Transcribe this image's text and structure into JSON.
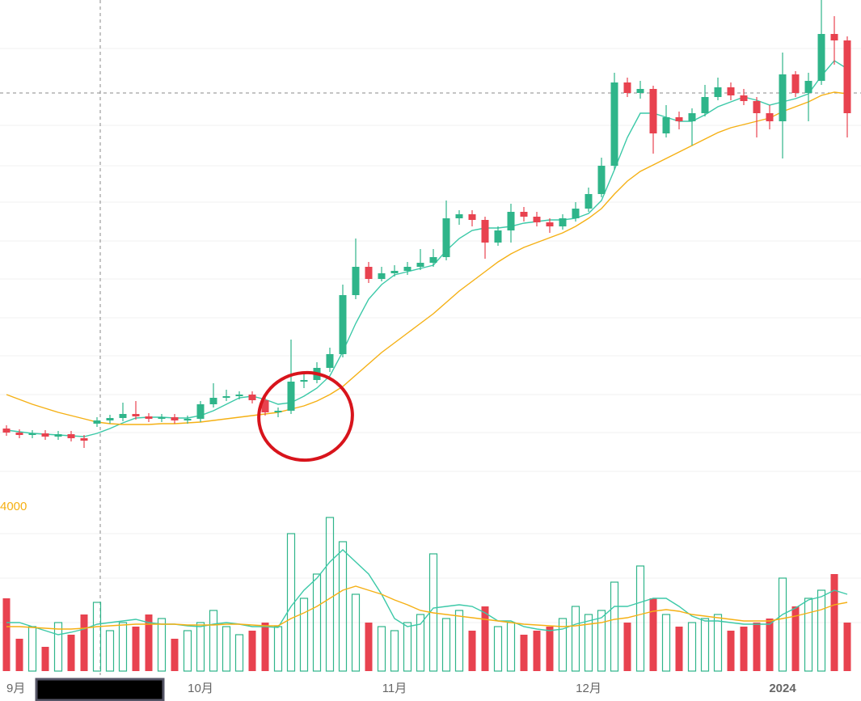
{
  "chart_data": {
    "type": "candlestick",
    "categories": [
      "9月",
      null,
      null,
      null,
      null,
      null,
      null,
      null,
      null,
      null,
      null,
      null,
      null,
      null,
      null,
      "10月",
      null,
      null,
      null,
      null,
      null,
      null,
      null,
      null,
      null,
      null,
      null,
      null,
      null,
      null,
      "11月",
      null,
      null,
      null,
      null,
      null,
      null,
      null,
      null,
      null,
      null,
      null,
      null,
      null,
      null,
      "12月",
      null,
      null,
      null,
      null,
      null,
      null,
      null,
      null,
      null,
      null,
      null,
      null,
      null,
      null,
      "2024",
      null,
      null,
      null,
      null,
      null
    ],
    "open": [
      90,
      85,
      82,
      84,
      80,
      83,
      78,
      96,
      100,
      103,
      108,
      105,
      102,
      104,
      100,
      102,
      120,
      128,
      130,
      132,
      125,
      110,
      112,
      148,
      150,
      165,
      182,
      255,
      290,
      275,
      282,
      285,
      290,
      295,
      302,
      350,
      355,
      348,
      320,
      335,
      358,
      352,
      345,
      340,
      350,
      362,
      380,
      415,
      518,
      505,
      510,
      455,
      475,
      470,
      480,
      500,
      512,
      502,
      495,
      480,
      470,
      528,
      505,
      520,
      578,
      570
    ],
    "high": [
      94,
      89,
      88,
      88,
      87,
      87,
      82,
      104,
      107,
      122,
      124,
      109,
      108,
      108,
      106,
      124,
      146,
      138,
      136,
      136,
      129,
      116,
      200,
      158,
      172,
      190,
      268,
      325,
      296,
      290,
      292,
      296,
      312,
      312,
      372,
      360,
      360,
      352,
      340,
      368,
      364,
      358,
      350,
      355,
      370,
      388,
      425,
      530,
      524,
      520,
      514,
      490,
      482,
      486,
      515,
      524,
      518,
      510,
      500,
      490,
      555,
      532,
      530,
      620,
      600,
      575
    ],
    "low": [
      81,
      78,
      78,
      76,
      76,
      74,
      66,
      92,
      96,
      99,
      101,
      98,
      98,
      96,
      96,
      98,
      116,
      124,
      126,
      121,
      106,
      104,
      108,
      140,
      146,
      160,
      178,
      250,
      270,
      272,
      278,
      280,
      286,
      290,
      298,
      342,
      340,
      300,
      316,
      320,
      346,
      340,
      332,
      336,
      346,
      358,
      376,
      410,
      500,
      498,
      430,
      450,
      460,
      440,
      476,
      496,
      496,
      490,
      450,
      460,
      424,
      500,
      470,
      515,
      540,
      450
    ],
    "close": [
      85,
      82,
      84,
      80,
      83,
      78,
      75,
      100,
      103,
      108,
      105,
      102,
      104,
      100,
      102,
      120,
      128,
      130,
      132,
      125,
      110,
      112,
      148,
      150,
      165,
      182,
      255,
      290,
      275,
      282,
      285,
      290,
      295,
      302,
      350,
      355,
      348,
      320,
      335,
      358,
      352,
      345,
      340,
      350,
      362,
      380,
      415,
      518,
      505,
      510,
      455,
      475,
      470,
      480,
      500,
      512,
      502,
      495,
      480,
      470,
      528,
      505,
      520,
      578,
      570,
      480
    ],
    "volume": [
      90,
      40,
      55,
      30,
      60,
      45,
      70,
      85,
      50,
      60,
      55,
      70,
      65,
      40,
      50,
      60,
      75,
      55,
      45,
      50,
      60,
      55,
      170,
      90,
      120,
      190,
      160,
      95,
      60,
      55,
      50,
      60,
      70,
      145,
      65,
      75,
      50,
      80,
      55,
      60,
      45,
      50,
      55,
      65,
      80,
      70,
      75,
      110,
      60,
      130,
      90,
      70,
      55,
      60,
      65,
      70,
      50,
      55,
      60,
      65,
      115,
      80,
      90,
      100,
      120,
      60
    ],
    "up_color": "#2fb58a",
    "down_color": "#e8424f",
    "ma_lines": [
      {
        "color": "#3cc9a8",
        "values": [
          88,
          86,
          84,
          83,
          82,
          81,
          80,
          84,
          90,
          97,
          103,
          104,
          104,
          103,
          103,
          106,
          112,
          120,
          128,
          130,
          126,
          120,
          122,
          130,
          140,
          155,
          185,
          220,
          250,
          268,
          280,
          284,
          288,
          292,
          310,
          325,
          335,
          338,
          338,
          340,
          344,
          346,
          348,
          348,
          350,
          356,
          372,
          410,
          450,
          480,
          480,
          475,
          470,
          470,
          478,
          488,
          494,
          500,
          496,
          490,
          494,
          498,
          504,
          526,
          545,
          535
        ]
      },
      {
        "color": "#f5b014",
        "values": [
          132,
          126,
          120,
          115,
          110,
          106,
          102,
          98,
          96,
          95,
          95,
          95,
          96,
          96,
          97,
          98,
          100,
          102,
          104,
          106,
          108,
          110,
          114,
          118,
          124,
          132,
          142,
          156,
          170,
          184,
          196,
          208,
          220,
          232,
          246,
          260,
          272,
          284,
          296,
          306,
          314,
          320,
          326,
          332,
          340,
          350,
          362,
          380,
          396,
          408,
          416,
          424,
          432,
          440,
          448,
          456,
          462,
          466,
          470,
          474,
          482,
          488,
          494,
          502,
          506,
          504
        ]
      }
    ],
    "volume_ma_lines": [
      {
        "color": "#3cc9a8",
        "values": [
          60,
          60,
          55,
          50,
          45,
          48,
          52,
          58,
          60,
          62,
          64,
          60,
          58,
          58,
          56,
          55,
          58,
          60,
          58,
          55,
          55,
          54,
          80,
          100,
          115,
          135,
          150,
          135,
          120,
          95,
          65,
          55,
          58,
          78,
          80,
          82,
          80,
          72,
          62,
          62,
          55,
          52,
          50,
          52,
          58,
          62,
          66,
          80,
          80,
          85,
          90,
          90,
          80,
          68,
          62,
          62,
          60,
          58,
          58,
          58,
          70,
          78,
          88,
          92,
          100,
          95
        ]
      },
      {
        "color": "#f5b014",
        "values": [
          55,
          55,
          54,
          53,
          52,
          52,
          53,
          55,
          56,
          57,
          58,
          58,
          58,
          58,
          57,
          57,
          57,
          58,
          58,
          57,
          56,
          56,
          65,
          72,
          80,
          90,
          100,
          105,
          100,
          95,
          88,
          82,
          75,
          72,
          70,
          68,
          66,
          64,
          62,
          60,
          58,
          57,
          56,
          55,
          56,
          58,
          60,
          64,
          66,
          70,
          74,
          76,
          74,
          70,
          68,
          66,
          64,
          62,
          62,
          62,
          65,
          68,
          72,
          76,
          82,
          85
        ]
      }
    ],
    "ylim": [
      0,
      620
    ],
    "volume_ylim": [
      0,
      200
    ],
    "annotation": "4000"
  }
}
